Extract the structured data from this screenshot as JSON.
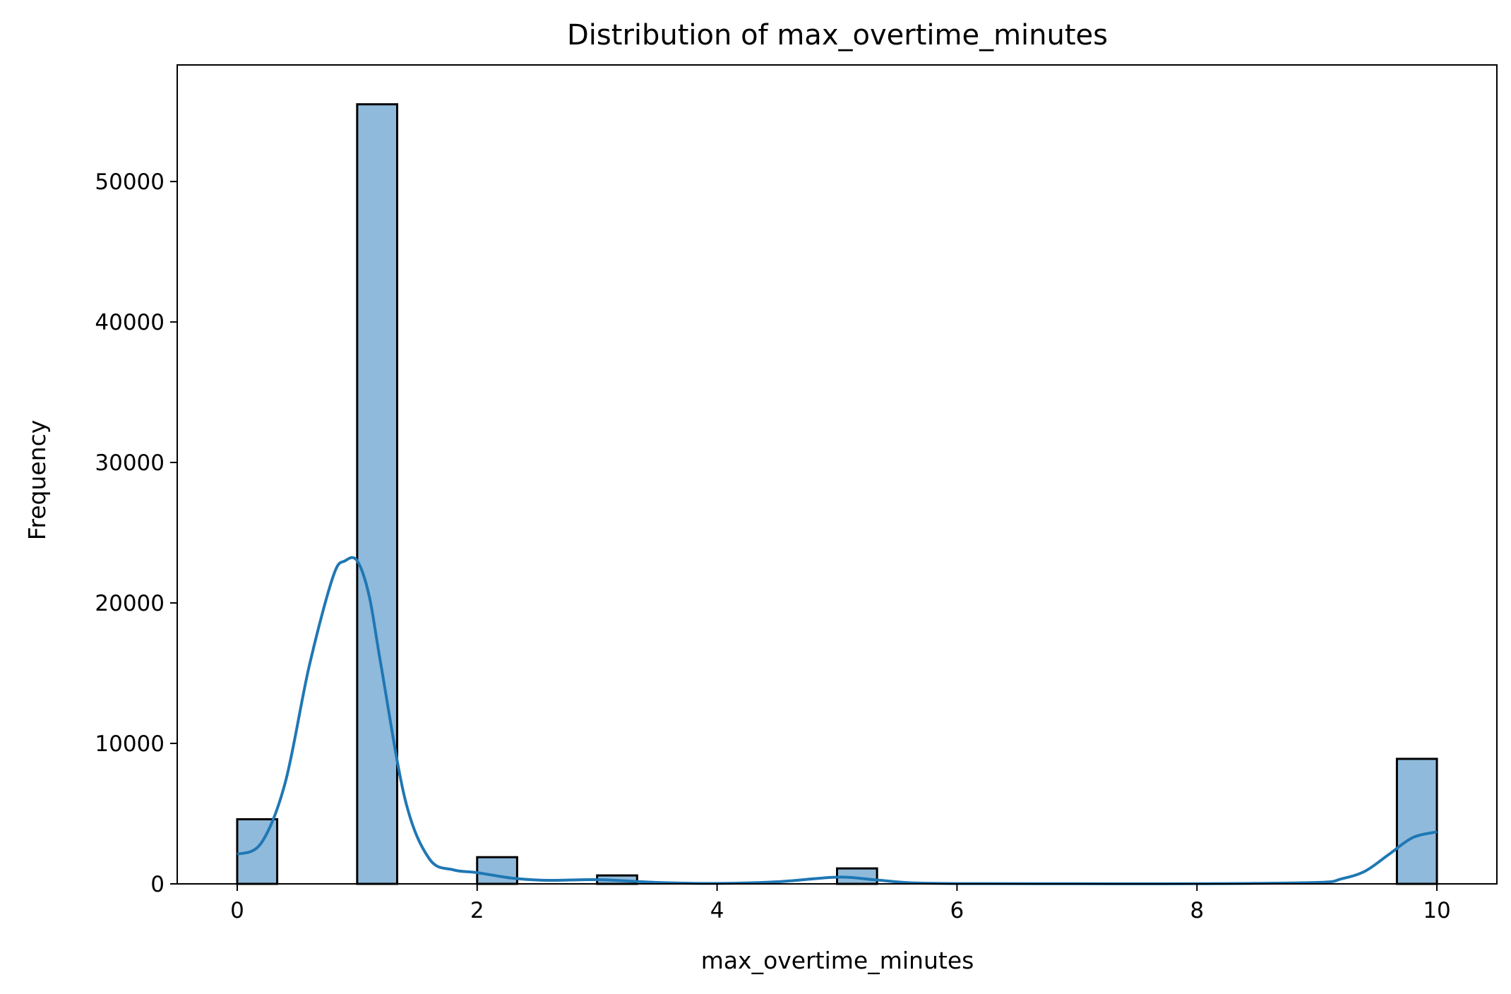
{
  "chart_data": {
    "type": "bar",
    "title": "Distribution of max_overtime_minutes",
    "xlabel": "max_overtime_minutes",
    "ylabel": "Frequency",
    "xlim": [
      -0.5,
      10.5
    ],
    "ylim": [
      0,
      58300
    ],
    "xticks": [
      0,
      2,
      4,
      6,
      8,
      10
    ],
    "yticks": [
      0,
      10000,
      20000,
      30000,
      40000,
      50000
    ],
    "bin_width": 0.3333,
    "bars": [
      {
        "x0": 0.0,
        "x1": 0.3333,
        "value": 4600
      },
      {
        "x0": 1.0,
        "x1": 1.3333,
        "value": 55500
      },
      {
        "x0": 2.0,
        "x1": 2.3333,
        "value": 1900
      },
      {
        "x0": 3.0,
        "x1": 3.3333,
        "value": 600
      },
      {
        "x0": 5.0,
        "x1": 5.3333,
        "value": 1100
      },
      {
        "x0": 9.6667,
        "x1": 10.0,
        "value": 8900
      }
    ],
    "kde": {
      "x": [
        0,
        0.2,
        0.4,
        0.6,
        0.8,
        0.9,
        1.0,
        1.1,
        1.2,
        1.4,
        1.6,
        1.8,
        2.0,
        2.3,
        2.6,
        3.0,
        3.5,
        4.0,
        4.5,
        5.0,
        5.3,
        5.6,
        6.0,
        7.0,
        8.0,
        9.0,
        9.2,
        9.4,
        9.6,
        9.8,
        10.0
      ],
      "y": [
        2100,
        2900,
        7200,
        15500,
        21900,
        23000,
        23000,
        20500,
        15500,
        6000,
        1800,
        1000,
        800,
        400,
        250,
        300,
        100,
        30,
        150,
        480,
        300,
        80,
        20,
        10,
        10,
        100,
        350,
        900,
        2100,
        3300,
        3700
      ]
    },
    "colors": {
      "bar_fill": "#8fbadb",
      "bar_edge": "#000000",
      "kde_line": "#1f77b4"
    },
    "grid": false
  }
}
